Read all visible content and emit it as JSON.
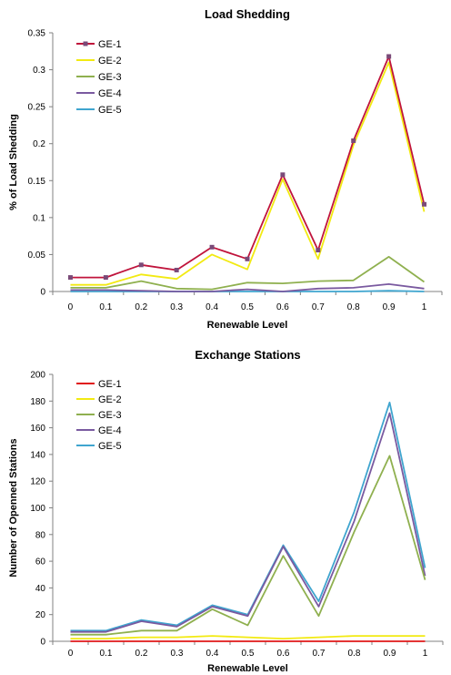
{
  "chart_data": [
    {
      "type": "line",
      "title": "Load Shedding",
      "xlabel": "Renewable Level",
      "ylabel": "% of Load Shedding",
      "x": [
        "0",
        "0.1",
        "0.2",
        "0.3",
        "0.4",
        "0.5",
        "0.6",
        "0.7",
        "0.8",
        "0.9",
        "1"
      ],
      "ylim": [
        0,
        0.35
      ],
      "yticks": [
        "0",
        "0.05",
        "0.1",
        "0.15",
        "0.2",
        "0.25",
        "0.3",
        "0.35"
      ],
      "grid": false,
      "legend_position": "top-left",
      "series": [
        {
          "name": "GE-1",
          "color": "#c0143c",
          "marker": "square",
          "values": [
            0.019,
            0.019,
            0.036,
            0.029,
            0.06,
            0.044,
            0.158,
            0.056,
            0.204,
            0.318,
            0.118
          ]
        },
        {
          "name": "GE-2",
          "color": "#f2ea12",
          "values": [
            0.009,
            0.009,
            0.023,
            0.017,
            0.05,
            0.03,
            0.152,
            0.044,
            0.198,
            0.31,
            0.108
          ]
        },
        {
          "name": "GE-3",
          "color": "#8fb04f",
          "values": [
            0.005,
            0.005,
            0.014,
            0.004,
            0.003,
            0.012,
            0.011,
            0.014,
            0.015,
            0.047,
            0.013
          ]
        },
        {
          "name": "GE-4",
          "color": "#7a5aa0",
          "values": [
            0.002,
            0.002,
            0.001,
            0.0,
            0.0,
            0.003,
            0.0,
            0.004,
            0.005,
            0.01,
            0.004
          ]
        },
        {
          "name": "GE-5",
          "color": "#3fa5cf",
          "values": [
            0.0,
            0.0,
            0.0,
            0.0,
            0.0,
            0.0,
            0.0,
            0.0,
            0.0,
            0.001,
            0.0
          ]
        }
      ]
    },
    {
      "type": "line",
      "title": "Exchange Stations",
      "xlabel": "Renewable Level",
      "ylabel": "Number of Openned Stations",
      "x": [
        "0",
        "0.1",
        "0.2",
        "0.3",
        "0.4",
        "0.5",
        "0.6",
        "0.7",
        "0.8",
        "0.9",
        "1"
      ],
      "ylim": [
        0,
        200
      ],
      "yticks": [
        "0",
        "20",
        "40",
        "60",
        "80",
        "100",
        "120",
        "140",
        "160",
        "180",
        "200"
      ],
      "grid": false,
      "legend_position": "top-left",
      "series": [
        {
          "name": "GE-1",
          "color": "#e01818",
          "values": [
            0,
            0,
            0,
            0,
            0,
            0,
            0,
            0,
            0,
            0,
            0
          ]
        },
        {
          "name": "GE-2",
          "color": "#f2ea12",
          "values": [
            2,
            2,
            3,
            3,
            4,
            3,
            2,
            3,
            4,
            4,
            4
          ]
        },
        {
          "name": "GE-3",
          "color": "#8fb04f",
          "values": [
            5,
            5,
            8,
            8,
            24,
            12,
            64,
            19,
            82,
            139,
            46
          ]
        },
        {
          "name": "GE-4",
          "color": "#7a5aa0",
          "values": [
            7,
            7,
            15,
            11,
            26,
            19,
            71,
            26,
            90,
            171,
            49
          ]
        },
        {
          "name": "GE-5",
          "color": "#3fa5cf",
          "values": [
            8,
            8,
            16,
            12,
            27,
            20,
            72,
            30,
            97,
            179,
            55
          ]
        }
      ]
    }
  ]
}
